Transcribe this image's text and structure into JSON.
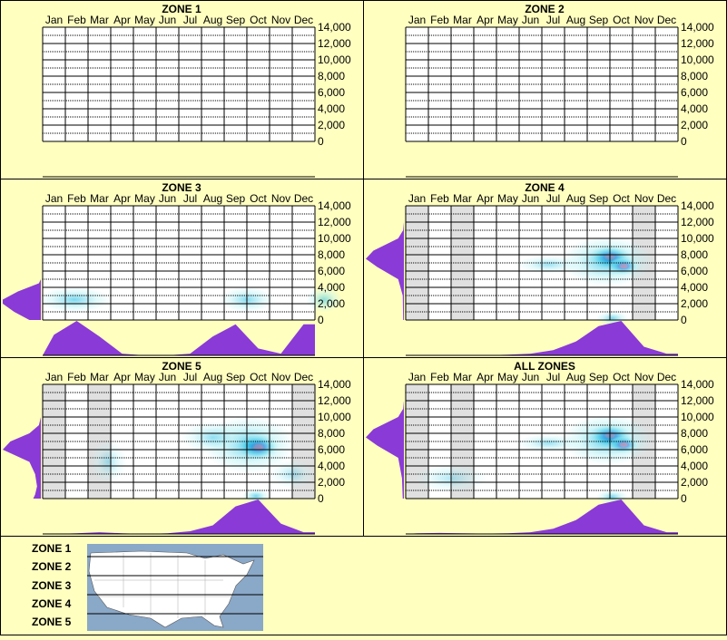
{
  "months": [
    "Jan",
    "Feb",
    "Mar",
    "Apr",
    "May",
    "Jun",
    "Jul",
    "Aug",
    "Sep",
    "Oct",
    "Nov",
    "Dec"
  ],
  "ytick_labels": [
    "0",
    "2,000",
    "4,000",
    "6,000",
    "8,000",
    "10,000",
    "12,000",
    "14,000"
  ],
  "legend": {
    "zones": [
      "ZONE 1",
      "ZONE 2",
      "ZONE 3",
      "ZONE 4",
      "ZONE 5"
    ]
  },
  "colors": {
    "background": "#ffffc0",
    "plot_background": "#ffffff",
    "shaded_month": "#e0e0e0",
    "violet": "#8a3ad6",
    "heat_low": "#bff3f6",
    "heat_mid": "#2cc0e6",
    "heat_high": "#1640d0",
    "heat_peak": "#e0106a",
    "map_water": "#8aa8c8",
    "map_land": "#ffffff"
  },
  "chart_data": [
    {
      "type": "heatmap",
      "title": "ZONE 1",
      "x": [
        "Jan",
        "Feb",
        "Mar",
        "Apr",
        "May",
        "Jun",
        "Jul",
        "Aug",
        "Sep",
        "Oct",
        "Nov",
        "Dec"
      ],
      "ylim": [
        0,
        14000
      ],
      "yticks": [
        0,
        2000,
        4000,
        6000,
        8000,
        10000,
        12000,
        14000
      ],
      "grid": true,
      "shaded_months": [],
      "hotspots": [],
      "month_profile": [
        0,
        0,
        0,
        0,
        0,
        0,
        0,
        0,
        0,
        0,
        0,
        0
      ],
      "elevation_profile": []
    },
    {
      "type": "heatmap",
      "title": "ZONE 2",
      "x": [
        "Jan",
        "Feb",
        "Mar",
        "Apr",
        "May",
        "Jun",
        "Jul",
        "Aug",
        "Sep",
        "Oct",
        "Nov",
        "Dec"
      ],
      "ylim": [
        0,
        14000
      ],
      "yticks": [
        0,
        2000,
        4000,
        6000,
        8000,
        10000,
        12000,
        14000
      ],
      "grid": true,
      "shaded_months": [],
      "hotspots": [],
      "month_profile": [
        0,
        0,
        0,
        0,
        0,
        0,
        0,
        0,
        0,
        0,
        0,
        0
      ],
      "elevation_profile": []
    },
    {
      "type": "heatmap",
      "title": "ZONE 3",
      "x": [
        "Jan",
        "Feb",
        "Mar",
        "Apr",
        "May",
        "Jun",
        "Jul",
        "Aug",
        "Sep",
        "Oct",
        "Nov",
        "Dec"
      ],
      "ylim": [
        0,
        14000
      ],
      "yticks": [
        0,
        2000,
        4000,
        6000,
        8000,
        10000,
        12000,
        14000
      ],
      "grid": true,
      "shaded_months": [],
      "hotspots": [
        {
          "month": 0.9,
          "elev": 2500,
          "sx": 0.8,
          "sy": 700,
          "amp": 0.35
        },
        {
          "month": 8.5,
          "elev": 2500,
          "sx": 0.6,
          "sy": 700,
          "amp": 0.3
        },
        {
          "month": 11.9,
          "elev": 2500,
          "sx": 0.4,
          "sy": 700,
          "amp": 0.25
        }
      ],
      "month_profile": [
        0.6,
        1.0,
        0.55,
        0.05,
        0,
        0,
        0.05,
        0.55,
        0.9,
        0.2,
        0.05,
        0.9
      ],
      "elevation_profile": [
        [
          0,
          0.3
        ],
        [
          1000,
          0.7
        ],
        [
          2000,
          1.0
        ],
        [
          2500,
          1.0
        ],
        [
          3500,
          0.6
        ],
        [
          4500,
          0.05
        ],
        [
          5000,
          0
        ]
      ]
    },
    {
      "type": "heatmap",
      "title": "ZONE 4",
      "x": [
        "Jan",
        "Feb",
        "Mar",
        "Apr",
        "May",
        "Jun",
        "Jul",
        "Aug",
        "Sep",
        "Oct",
        "Nov",
        "Dec"
      ],
      "ylim": [
        0,
        14000
      ],
      "yticks": [
        0,
        2000,
        4000,
        6000,
        8000,
        10000,
        12000,
        14000
      ],
      "grid": true,
      "shaded_months": [
        0,
        2,
        10
      ],
      "hotspots": [
        {
          "month": 8.5,
          "elev": 7700,
          "sx": 0.45,
          "sy": 650,
          "amp": 1.0
        },
        {
          "month": 9.1,
          "elev": 6600,
          "sx": 0.35,
          "sy": 500,
          "amp": 0.75
        },
        {
          "month": 8.4,
          "elev": 7200,
          "sx": 1.0,
          "sy": 1400,
          "amp": 0.5
        },
        {
          "month": 5.8,
          "elev": 6800,
          "sx": 0.7,
          "sy": 500,
          "amp": 0.18
        },
        {
          "month": 8.6,
          "elev": 200,
          "sx": 0.35,
          "sy": 400,
          "amp": 0.35
        }
      ],
      "month_profile": [
        0,
        0,
        0,
        0,
        0.02,
        0.05,
        0.15,
        0.4,
        0.85,
        1.0,
        0.25,
        0.05
      ],
      "elevation_profile": [
        [
          0,
          0.02
        ],
        [
          3000,
          0.03
        ],
        [
          5000,
          0.15
        ],
        [
          6500,
          0.7
        ],
        [
          7500,
          1.0
        ],
        [
          8500,
          0.8
        ],
        [
          10000,
          0.15
        ],
        [
          11000,
          0.02
        ],
        [
          12000,
          0
        ]
      ]
    },
    {
      "type": "heatmap",
      "title": "ZONE 5",
      "x": [
        "Jan",
        "Feb",
        "Mar",
        "Apr",
        "May",
        "Jun",
        "Jul",
        "Aug",
        "Sep",
        "Oct",
        "Nov",
        "Dec"
      ],
      "ylim": [
        0,
        14000
      ],
      "yticks": [
        0,
        2000,
        4000,
        6000,
        8000,
        10000,
        12000,
        14000
      ],
      "grid": true,
      "shaded_months": [
        0,
        2,
        11
      ],
      "hotspots": [
        {
          "month": 9.0,
          "elev": 6300,
          "sx": 0.45,
          "sy": 700,
          "amp": 1.0
        },
        {
          "month": 8.6,
          "elev": 6600,
          "sx": 1.0,
          "sy": 1600,
          "amp": 0.45
        },
        {
          "month": 7.0,
          "elev": 7500,
          "sx": 0.7,
          "sy": 900,
          "amp": 0.2
        },
        {
          "month": 2.4,
          "elev": 4500,
          "sx": 0.4,
          "sy": 1200,
          "amp": 0.08
        },
        {
          "month": 8.9,
          "elev": 300,
          "sx": 0.3,
          "sy": 400,
          "amp": 0.4
        },
        {
          "month": 10.5,
          "elev": 3000,
          "sx": 0.5,
          "sy": 800,
          "amp": 0.08
        }
      ],
      "month_profile": [
        0,
        0.02,
        0.05,
        0.02,
        0,
        0.02,
        0.08,
        0.25,
        0.8,
        1.0,
        0.3,
        0.05
      ],
      "elevation_profile": [
        [
          0,
          0.2
        ],
        [
          500,
          0.15
        ],
        [
          1500,
          0.1
        ],
        [
          3000,
          0.15
        ],
        [
          4500,
          0.3
        ],
        [
          6000,
          1.0
        ],
        [
          7000,
          0.8
        ],
        [
          8000,
          0.3
        ],
        [
          9000,
          0.05
        ],
        [
          10000,
          0
        ]
      ]
    },
    {
      "type": "heatmap",
      "title": "ALL ZONES",
      "x": [
        "Jan",
        "Feb",
        "Mar",
        "Apr",
        "May",
        "Jun",
        "Jul",
        "Aug",
        "Sep",
        "Oct",
        "Nov",
        "Dec"
      ],
      "ylim": [
        0,
        14000
      ],
      "yticks": [
        0,
        2000,
        4000,
        6000,
        8000,
        10000,
        12000,
        14000
      ],
      "grid": true,
      "shaded_months": [
        0,
        2,
        10
      ],
      "hotspots": [
        {
          "month": 8.5,
          "elev": 7700,
          "sx": 0.45,
          "sy": 650,
          "amp": 1.0
        },
        {
          "month": 9.1,
          "elev": 6600,
          "sx": 0.35,
          "sy": 500,
          "amp": 0.8
        },
        {
          "month": 8.4,
          "elev": 7200,
          "sx": 1.0,
          "sy": 1400,
          "amp": 0.5
        },
        {
          "month": 5.8,
          "elev": 6800,
          "sx": 0.7,
          "sy": 500,
          "amp": 0.18
        },
        {
          "month": 8.6,
          "elev": 200,
          "sx": 0.35,
          "sy": 400,
          "amp": 0.35
        },
        {
          "month": 1.5,
          "elev": 2500,
          "sx": 0.8,
          "sy": 800,
          "amp": 0.06
        }
      ],
      "month_profile": [
        0.02,
        0.03,
        0.02,
        0.01,
        0.02,
        0.05,
        0.15,
        0.4,
        0.85,
        1.0,
        0.25,
        0.05
      ],
      "elevation_profile": [
        [
          0,
          0.03
        ],
        [
          2500,
          0.05
        ],
        [
          5000,
          0.15
        ],
        [
          6500,
          0.7
        ],
        [
          7500,
          1.0
        ],
        [
          8500,
          0.8
        ],
        [
          10000,
          0.15
        ],
        [
          11000,
          0.02
        ],
        [
          12000,
          0
        ]
      ]
    }
  ]
}
